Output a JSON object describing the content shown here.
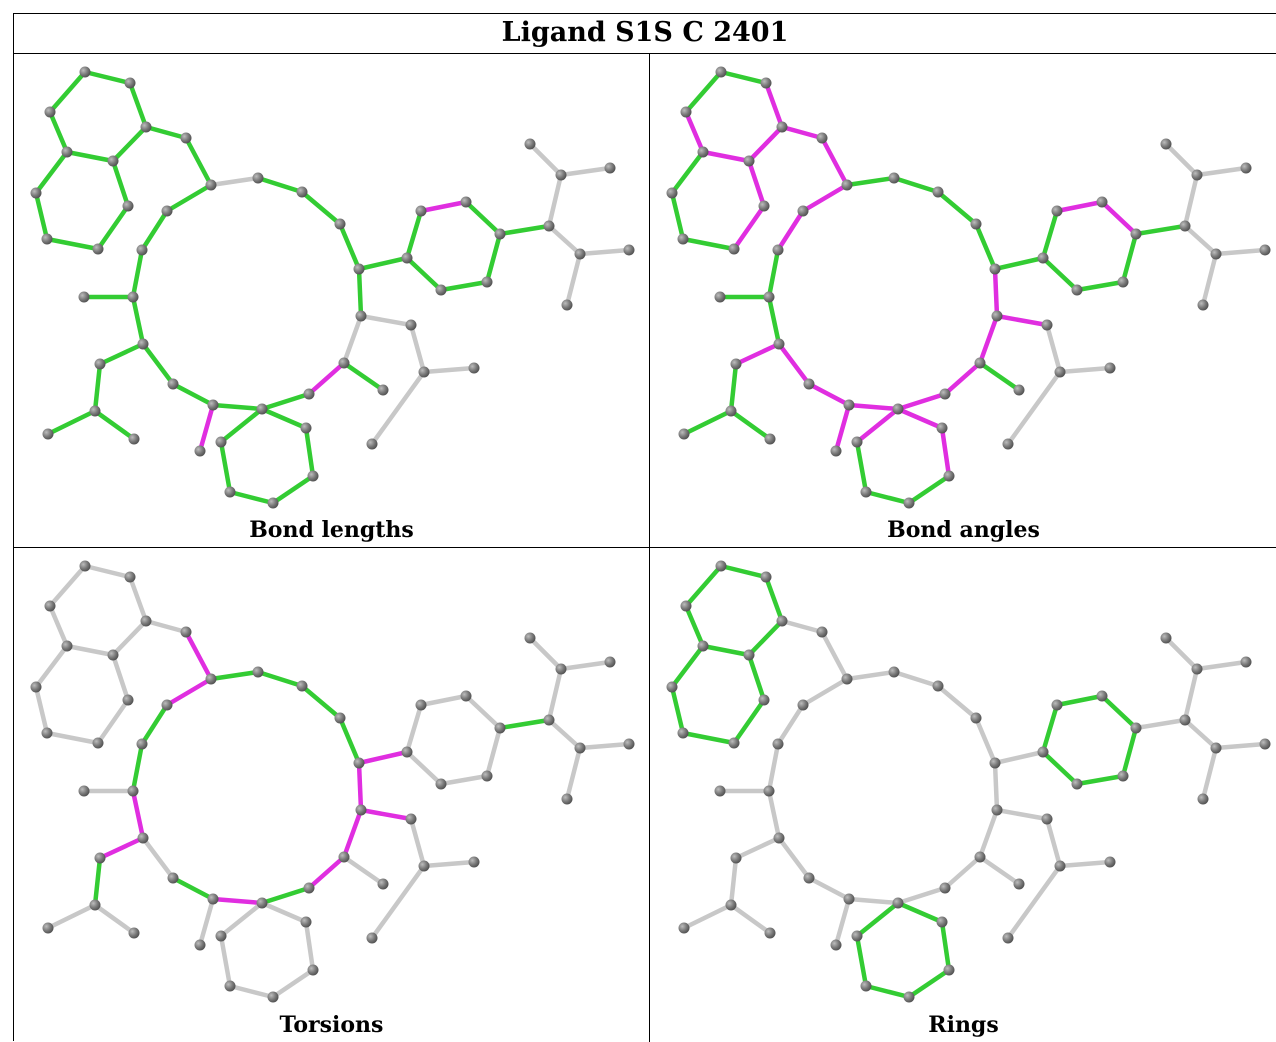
{
  "title": "Ligand S1S C 2401",
  "panels": [
    {
      "caption": "Bond lengths",
      "highlight_color": "#e02ee0",
      "pass_color": "#33cc33"
    },
    {
      "caption": "Bond angles",
      "highlight_color": "#e02ee0",
      "pass_color": "#33cc33"
    },
    {
      "caption": "Torsions",
      "highlight_color": "#e02ee0",
      "pass_color": "#33cc33"
    },
    {
      "caption": "Rings",
      "highlight_color": "#e02ee0",
      "pass_color": "#33cc33"
    }
  ],
  "colors": {
    "atom": "#7a7a7a",
    "neutral_bond": "#c8c8c8",
    "green": "#33cc33",
    "magenta": "#e02ee0"
  }
}
